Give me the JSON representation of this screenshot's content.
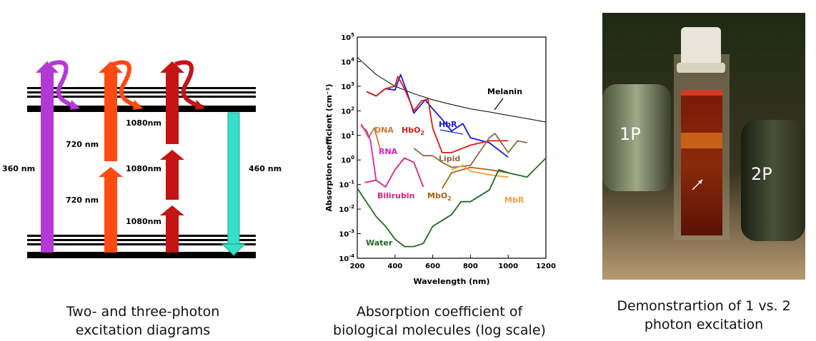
{
  "diagram": {
    "labels": {
      "nm360": "360 nm",
      "nm720_top": "720 nm",
      "nm720_bottom": "720 nm",
      "nm1080_top": "1080nm",
      "nm1080_mid": "1080nm",
      "nm1080_bottom": "1080nm",
      "nm460": "460 nm"
    },
    "colors": {
      "purple": "#b438d6",
      "orange": "#ff4a12",
      "darkred": "#c41414",
      "teal": "#36e0c8"
    }
  },
  "chart_data": {
    "type": "line",
    "title": "",
    "xlabel": "Wavelength (nm)",
    "ylabel": "Absorption coefficient (cm⁻¹)",
    "xlim": [
      200,
      1200
    ],
    "ylim": [
      0.0001,
      100000
    ],
    "log_y": true,
    "x_ticks": [
      "200",
      "400",
      "600",
      "800",
      "1000",
      "1200"
    ],
    "y_ticks": [
      {
        "base": "10",
        "exp": "5"
      },
      {
        "base": "10",
        "exp": "4"
      },
      {
        "base": "10",
        "exp": "3"
      },
      {
        "base": "10",
        "exp": "2"
      },
      {
        "base": "10",
        "exp": "1"
      },
      {
        "base": "10",
        "exp": "0"
      },
      {
        "base": "10",
        "exp": "-1"
      },
      {
        "base": "10",
        "exp": "-2"
      },
      {
        "base": "10",
        "exp": "-3"
      },
      {
        "base": "10",
        "exp": "-4"
      }
    ],
    "series": [
      {
        "name": "Melanin",
        "color": "#000000",
        "x": [
          200,
          300,
          400,
          500,
          600,
          700,
          800,
          900,
          1000,
          1100,
          1200
        ],
        "y": [
          15000,
          3000,
          1000,
          500,
          280,
          180,
          120,
          90,
          65,
          48,
          35
        ]
      },
      {
        "name": "HbR",
        "color": "#1a1adc",
        "x": [
          250,
          300,
          350,
          400,
          430,
          460,
          500,
          560,
          600,
          650,
          700,
          760,
          800,
          900,
          1000
        ],
        "y": [
          600,
          400,
          800,
          700,
          3000,
          700,
          80,
          280,
          120,
          45,
          15,
          30,
          8,
          5,
          1.3
        ]
      },
      {
        "name": "HbO2",
        "color": "#e01818",
        "x": [
          250,
          300,
          350,
          400,
          415,
          450,
          500,
          540,
          575,
          600,
          650,
          700,
          800,
          900,
          1000
        ],
        "y": [
          600,
          400,
          800,
          1000,
          2500,
          800,
          100,
          250,
          300,
          20,
          2,
          2,
          4,
          6,
          6
        ]
      },
      {
        "name": "DNA",
        "color": "#d07a30",
        "x": [
          220,
          260,
          290,
          320
        ],
        "y": [
          30,
          8,
          20,
          3
        ]
      },
      {
        "name": "RNA",
        "color": "#e020c0",
        "x": [
          220,
          250,
          270,
          300
        ],
        "y": [
          25,
          15,
          6,
          0.15
        ]
      },
      {
        "name": "Bilirubin",
        "color": "#e02080",
        "x": [
          240,
          300,
          350,
          400,
          450,
          500,
          550
        ],
        "y": [
          0.12,
          0.15,
          0.08,
          0.4,
          1.2,
          0.8,
          0.08
        ]
      },
      {
        "name": "Lipid",
        "color": "#8a6a40",
        "x": [
          500,
          550,
          600,
          650,
          700,
          800,
          900,
          930,
          1000,
          1050,
          1100
        ],
        "y": [
          3,
          1.5,
          1.5,
          0.8,
          0.5,
          0.6,
          8,
          12,
          2,
          6,
          5
        ]
      },
      {
        "name": "MbO2",
        "color": "#b06010",
        "x": [
          650,
          700,
          800,
          900,
          1000
        ],
        "y": [
          0.07,
          0.3,
          0.5,
          0.4,
          0.3
        ]
      },
      {
        "name": "MbR",
        "color": "#f0a040",
        "x": [
          700,
          760,
          800,
          900,
          1000
        ],
        "y": [
          0.4,
          0.6,
          0.35,
          0.25,
          0.2
        ]
      },
      {
        "name": "Water",
        "color": "#1f6b1f",
        "x": [
          200,
          300,
          350,
          400,
          450,
          500,
          550,
          600,
          700,
          750,
          800,
          900,
          950,
          1000,
          1100,
          1200
        ],
        "y": [
          0.07,
          0.005,
          0.002,
          0.0006,
          0.0003,
          0.0003,
          0.0004,
          0.002,
          0.006,
          0.02,
          0.02,
          0.06,
          0.4,
          0.3,
          0.2,
          1.2
        ]
      }
    ],
    "annotations": {
      "melanin": "Melanin",
      "hbr": "HbR",
      "hbo2_base": "HbO",
      "hbo2_sub": "2",
      "dna": "DNA",
      "rna": "RNA",
      "lipid": "Lipid",
      "bilirubin": "Bilirubin",
      "mbo2_base": "MbO",
      "mbo2_sub": "2",
      "mbr": "MbR",
      "water": "Water"
    }
  },
  "photo": {
    "label_1p": "1P",
    "label_2p": "2P"
  },
  "captions": {
    "diagram_line1": "Two- and three-photon",
    "diagram_line2": "excitation diagrams",
    "chart_line1": "Absorption coefficient of",
    "chart_line2": "biological molecules (log scale)",
    "photo_line1": "Demonstrartion of 1 vs. 2",
    "photo_line2": "photon excitation"
  }
}
